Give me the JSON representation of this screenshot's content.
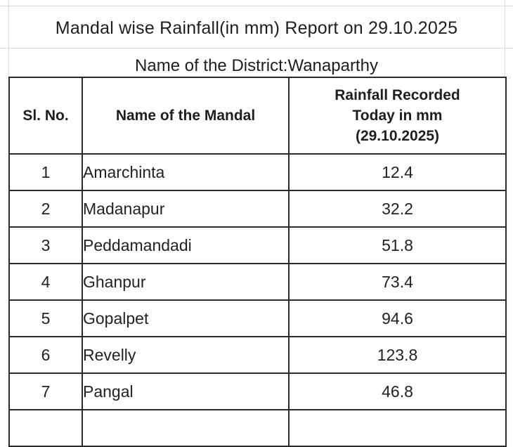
{
  "report": {
    "title": "Mandal wise Rainfall(in mm) Report on 29.10.2025",
    "district_line": "Name of the District:Wanaparthy"
  },
  "table": {
    "headers": {
      "sl_no": "Sl. No.",
      "mandal": "Name of the Mandal",
      "rainfall_line1": "Rainfall Recorded",
      "rainfall_line2": "Today in mm",
      "rainfall_line3": "(29.10.2025)"
    },
    "rows": [
      {
        "sl": "1",
        "mandal": "Amarchinta",
        "rainfall": "12.4"
      },
      {
        "sl": "2",
        "mandal": "Madanapur",
        "rainfall": "32.2"
      },
      {
        "sl": "3",
        "mandal": "Peddamandadi",
        "rainfall": "51.8"
      },
      {
        "sl": "4",
        "mandal": "Ghanpur",
        "rainfall": "73.4"
      },
      {
        "sl": "5",
        "mandal": "Gopalpet",
        "rainfall": "94.6"
      },
      {
        "sl": "6",
        "mandal": "Revelly",
        "rainfall": "123.8"
      },
      {
        "sl": "7",
        "mandal": "Pangal",
        "rainfall": "46.8"
      }
    ]
  }
}
